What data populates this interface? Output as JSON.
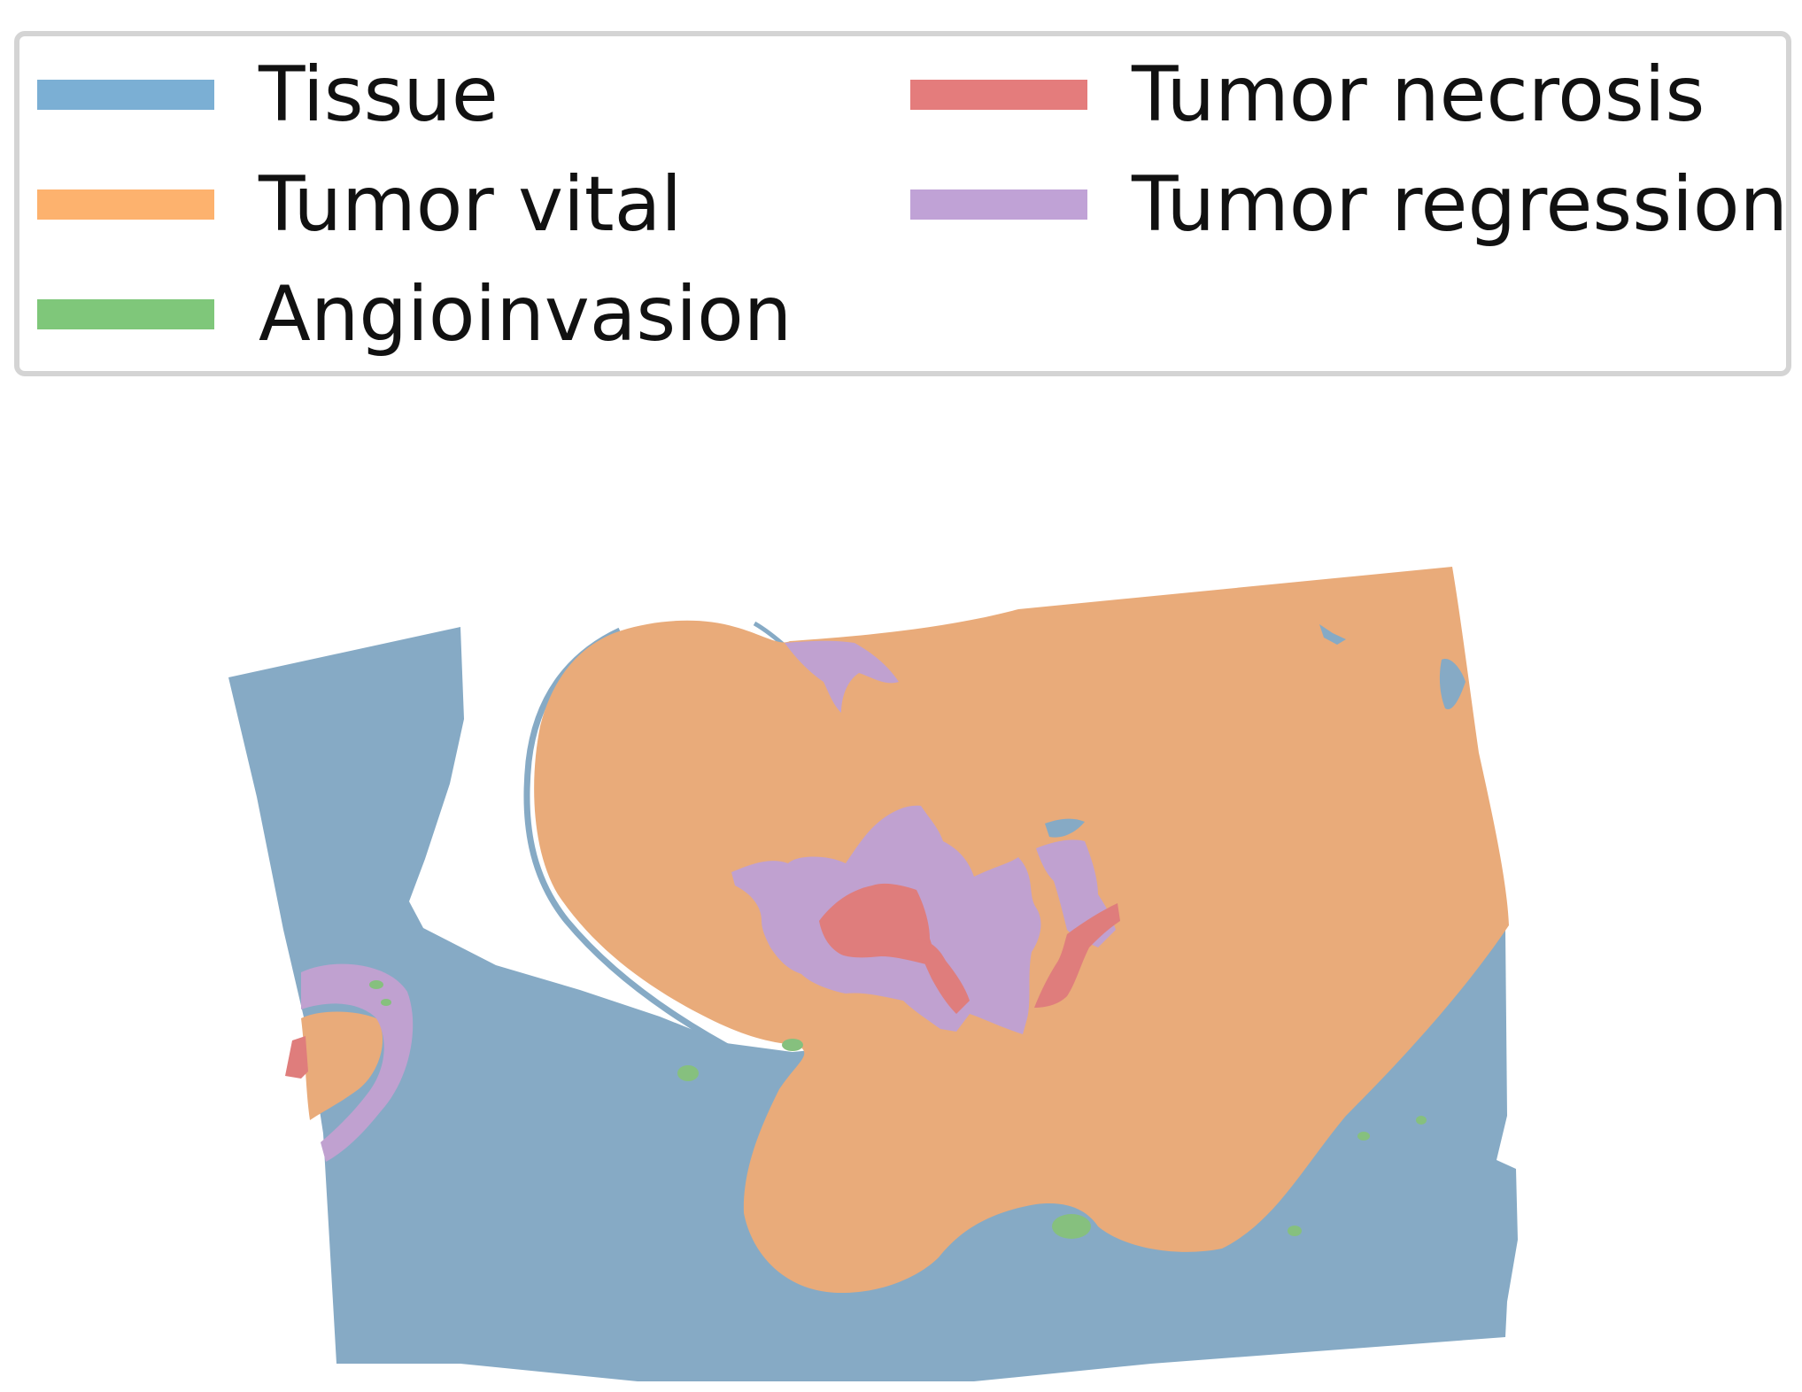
{
  "legend": {
    "items": [
      {
        "label": "Tissue",
        "color": "#7bafd4"
      },
      {
        "label": "Tumor vital",
        "color": "#fdb26e"
      },
      {
        "label": "Angioinvasion",
        "color": "#7fc77a"
      },
      {
        "label": "Tumor necrosis",
        "color": "#e47c7c"
      },
      {
        "label": "Tumor regression",
        "color": "#c0a2d6"
      }
    ]
  },
  "regions": {
    "tissue": {
      "color": "#86aac5"
    },
    "tumor_vital": {
      "color": "#e9ab7a"
    },
    "angioinvasion": {
      "color": "#86c07e"
    },
    "tumor_necrosis": {
      "color": "#df7d7c"
    },
    "tumor_regression": {
      "color": "#c0a1d0"
    }
  }
}
